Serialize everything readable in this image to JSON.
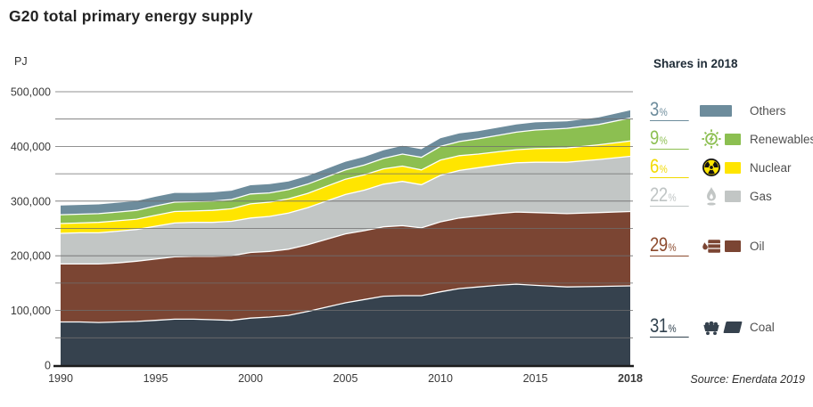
{
  "title": "G20 total primary energy supply",
  "y_axis": {
    "unit_label": "PJ"
  },
  "source": "Source: Enerdata 2019",
  "legend": {
    "heading": "Shares in 2018",
    "unit": "%",
    "items": [
      {
        "id": "others",
        "label": "Others",
        "share": "3",
        "color": "#6d8c9c",
        "text_color": "#6d8c9c"
      },
      {
        "id": "renewables",
        "label": "Renewables",
        "share": "9",
        "color": "#8cbf51",
        "text_color": "#8cbf51"
      },
      {
        "id": "nuclear",
        "label": "Nuclear",
        "share": "6",
        "color": "#ffe500",
        "text_color": "#f2da00"
      },
      {
        "id": "gas",
        "label": "Gas",
        "share": "22",
        "color": "#c2c6c5",
        "text_color": "#bfc4c4"
      },
      {
        "id": "oil",
        "label": "Oil",
        "share": "29",
        "color": "#7b4533",
        "text_color": "#8c4a2d"
      },
      {
        "id": "coal",
        "label": "Coal",
        "share": "31",
        "color": "#36424e",
        "text_color": "#31424f"
      }
    ]
  },
  "chart_data": {
    "type": "area",
    "stacked": true,
    "title": "G20 total primary energy supply",
    "ylabel": "PJ",
    "ylim": [
      0,
      500000
    ],
    "y_ticks": [
      0,
      100000,
      200000,
      300000,
      400000,
      500000
    ],
    "gridline_step": 50000,
    "grid": true,
    "x_ticks": [
      1990,
      1995,
      2000,
      2005,
      2010,
      2015,
      2018
    ],
    "x_tick_labels": [
      "1990",
      "1995",
      "2000",
      "2005",
      "2010",
      "2015",
      "2018"
    ],
    "x": [
      1990,
      1991,
      1992,
      1993,
      1994,
      1995,
      1996,
      1997,
      1998,
      1999,
      2000,
      2001,
      2002,
      2003,
      2004,
      2005,
      2006,
      2007,
      2008,
      2009,
      2010,
      2011,
      2012,
      2013,
      2014,
      2015,
      2016,
      2017,
      2018
    ],
    "series": [
      {
        "name": "Coal",
        "color": "#36424e",
        "values": [
          79000,
          79000,
          78000,
          79000,
          80000,
          82000,
          84000,
          84000,
          83000,
          82000,
          86000,
          88000,
          91000,
          98000,
          106000,
          114000,
          120000,
          126000,
          127000,
          127000,
          134000,
          140000,
          143000,
          146000,
          148000,
          146000,
          143000,
          144000,
          145000
        ]
      },
      {
        "name": "Oil",
        "color": "#7b4533",
        "values": [
          106000,
          106000,
          107000,
          108000,
          110000,
          112000,
          114000,
          115000,
          116000,
          118000,
          120000,
          120000,
          121000,
          122000,
          124000,
          126000,
          126000,
          127000,
          128000,
          124000,
          128000,
          129000,
          130000,
          131000,
          132000,
          133000,
          134000,
          135000,
          136000
        ]
      },
      {
        "name": "Gas",
        "color": "#c2c6c5",
        "values": [
          56000,
          57000,
          57000,
          58000,
          58000,
          60000,
          62000,
          62000,
          62000,
          63000,
          63000,
          64000,
          66000,
          68000,
          70000,
          72000,
          74000,
          78000,
          81000,
          79000,
          85000,
          87000,
          88000,
          89000,
          90000,
          92000,
          94000,
          97000,
          101000
        ]
      },
      {
        "name": "Nuclear",
        "color": "#ffe500",
        "values": [
          18000,
          18000,
          19000,
          19000,
          19000,
          20000,
          21000,
          21000,
          22000,
          23000,
          26000,
          26000,
          26000,
          26000,
          27000,
          28000,
          28000,
          28000,
          28000,
          27000,
          28000,
          27000,
          25000,
          24000,
          24000,
          25000,
          26000,
          27000,
          28000
        ]
      },
      {
        "name": "Renewables",
        "color": "#8cbf51",
        "values": [
          16000,
          16000,
          16000,
          16000,
          16000,
          17000,
          17000,
          17000,
          17000,
          17000,
          18000,
          17000,
          17000,
          17000,
          17000,
          17000,
          18000,
          19000,
          22000,
          23000,
          25000,
          26000,
          28000,
          30000,
          32000,
          34000,
          36000,
          37000,
          42000
        ]
      },
      {
        "name": "Others",
        "color": "#6d8c9c",
        "values": [
          17000,
          17000,
          17000,
          17000,
          17000,
          17000,
          17000,
          16000,
          16000,
          16000,
          16000,
          16000,
          15000,
          15000,
          15000,
          15000,
          15000,
          15000,
          15000,
          15000,
          15000,
          15000,
          14000,
          14000,
          14000,
          14000,
          13000,
          13000,
          14000
        ]
      }
    ],
    "shares_2018": {
      "Coal": 31,
      "Oil": 29,
      "Gas": 22,
      "Nuclear": 6,
      "Renewables": 9,
      "Others": 3
    }
  }
}
